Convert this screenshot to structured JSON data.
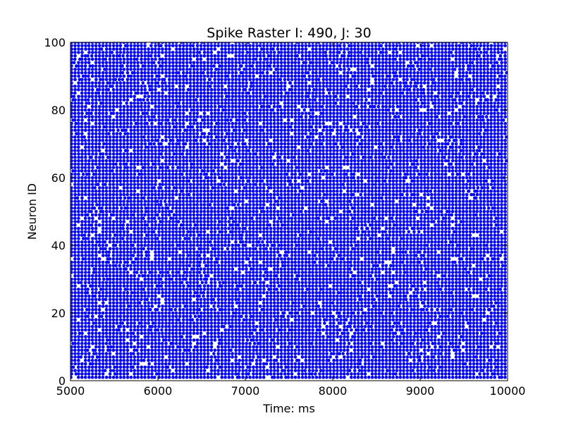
{
  "chart_data": {
    "type": "scatter",
    "title": "Spike Raster I: 490, J: 30",
    "xlabel": "Time: ms",
    "ylabel": "Neuron ID",
    "xlim": [
      5000,
      10000
    ],
    "ylim": [
      0,
      100
    ],
    "xticks": [
      5000,
      6000,
      7000,
      8000,
      9000,
      10000
    ],
    "yticks": [
      0,
      20,
      40,
      60,
      80,
      100
    ],
    "xtick_labels": [
      "5000",
      "6000",
      "7000",
      "8000",
      "9000",
      "10000"
    ],
    "ytick_labels": [
      "0",
      "20",
      "40",
      "60",
      "80",
      "100"
    ],
    "grid": false,
    "legend": "none",
    "marker_color": "#0000ff",
    "neuron_ids": [
      1,
      100
    ],
    "approx_column_spacing_ms": 40,
    "series": [
      {
        "neurons_per_event": "all",
        "description": "population spike raster: each neuron fires once in nearly every ~40 ms cycle, with jitter of a few ms across neurons, producing dense near-vertical columns of dots",
        "events_ms_approx": [
          5000,
          5040,
          5080,
          5120,
          5160,
          5200,
          5240,
          5280,
          5320,
          5360,
          5400,
          5440,
          5480,
          5520,
          5560,
          5600,
          5640,
          5680,
          5720,
          5760,
          5800,
          5840,
          5880,
          5920,
          5960,
          6000,
          6040,
          6080,
          6120,
          6160,
          6200,
          6240,
          6280,
          6320,
          6360,
          6400,
          6440,
          6480,
          6520,
          6560,
          6600,
          6640,
          6680,
          6720,
          6760,
          6800,
          6840,
          6880,
          6920,
          6960,
          7000,
          7040,
          7080,
          7120,
          7160,
          7200,
          7240,
          7280,
          7320,
          7360,
          7400,
          7440,
          7480,
          7520,
          7560,
          7600,
          7640,
          7680,
          7720,
          7760,
          7800,
          7840,
          7880,
          7920,
          7960,
          8000,
          8040,
          8080,
          8120,
          8160,
          8200,
          8240,
          8280,
          8320,
          8360,
          8400,
          8440,
          8480,
          8520,
          8560,
          8600,
          8640,
          8680,
          8720,
          8760,
          8800,
          8840,
          8880,
          8920,
          8960,
          9000,
          9040,
          9080,
          9120,
          9160,
          9200,
          9240,
          9280,
          9320,
          9360,
          9400,
          9440,
          9480,
          9520,
          9560,
          9600,
          9640,
          9680,
          9720,
          9760,
          9800,
          9840,
          9880,
          9920,
          9960
        ]
      }
    ]
  }
}
